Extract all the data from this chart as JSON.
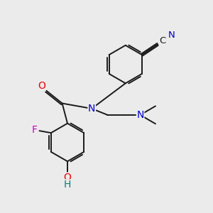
{
  "background_color": "#ebebeb",
  "bond_color": "#1a1a1a",
  "atom_colors": {
    "N": "#0000cc",
    "O": "#ee0000",
    "F": "#cc00cc",
    "C_label": "#1a1a1a",
    "OH_color": "#008080",
    "H_color": "#008080"
  },
  "figsize": [
    3.0,
    3.0
  ],
  "dpi": 100,
  "bond_lw": 1.4,
  "font_size": 9.5
}
